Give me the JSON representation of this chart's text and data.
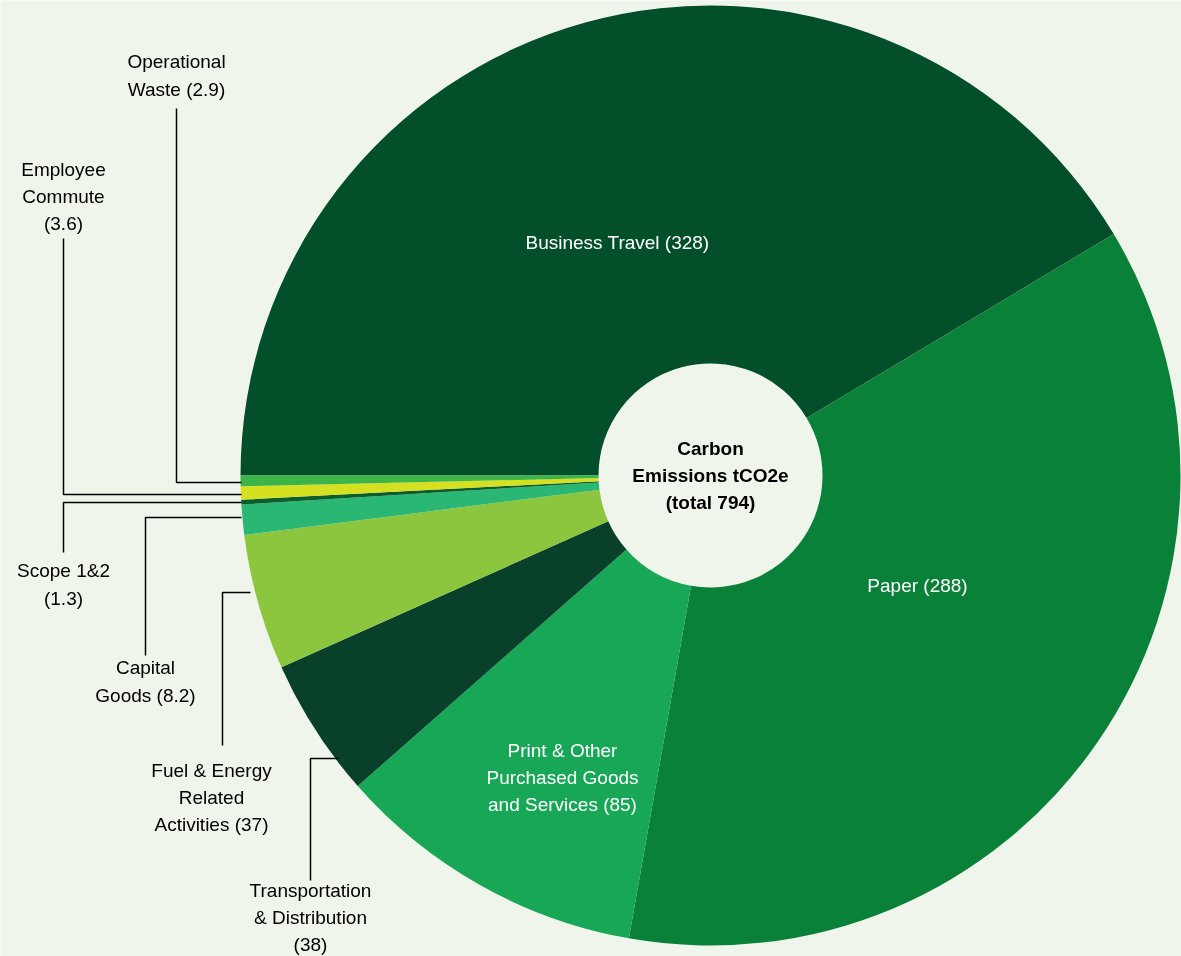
{
  "chart_data": {
    "type": "donut",
    "title": "Carbon Emissions tCO2e (total 794)",
    "categories": [
      "Business Travel",
      "Paper",
      "Print & Other Purchased Goods and Services",
      "Transportation & Distribution",
      "Fuel & Energy Related Activities",
      "Capital Goods",
      "Scope 1&2",
      "Employee Commute",
      "Operational Waste"
    ],
    "values": [
      328,
      288,
      85,
      38,
      37,
      8.2,
      1.3,
      3.6,
      2.9
    ],
    "colors": [
      "#024f2a",
      "#0a8139",
      "#17a757",
      "#08402a",
      "#8cc63f",
      "#2ab673",
      "#0b5c2e",
      "#d4e020",
      "#3cb44a"
    ],
    "value_labels": [
      "(328)",
      "(288)",
      "(85)",
      "(38)",
      "(37)",
      "(8.2)",
      "(1.3)",
      "(3.6)",
      "(2.9)"
    ]
  }
}
